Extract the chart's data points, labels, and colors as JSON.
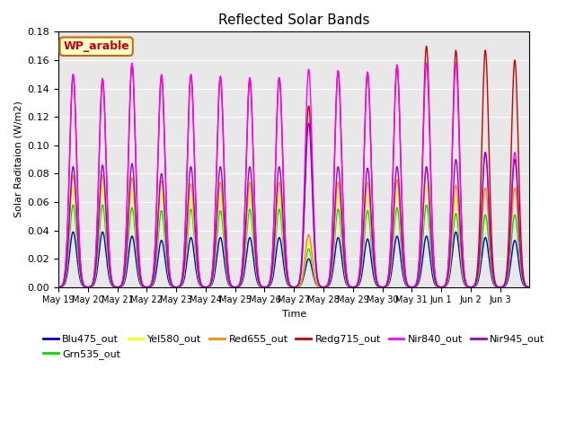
{
  "title": "Reflected Solar Bands",
  "xlabel": "Time",
  "ylabel": "Solar Raditaion (W/m2)",
  "annotation_text": "WP_arable",
  "annotation_bg": "#ffffcc",
  "annotation_border": "#cc6600",
  "annotation_text_color": "#cc0000",
  "ylim": [
    0,
    0.18
  ],
  "yticks": [
    0.0,
    0.02,
    0.04,
    0.06,
    0.08,
    0.1,
    0.12,
    0.14,
    0.16,
    0.18
  ],
  "fig_bg": "#ffffff",
  "axes_bg": "#e8e8e8",
  "series": {
    "Blu475_out": {
      "color": "#0000dd",
      "zorder": 3
    },
    "Grn535_out": {
      "color": "#00dd00",
      "zorder": 4
    },
    "Yel580_out": {
      "color": "#ffff00",
      "zorder": 5
    },
    "Red655_out": {
      "color": "#ff8800",
      "zorder": 6
    },
    "Redg715_out": {
      "color": "#cc0000",
      "zorder": 7
    },
    "Nir840_out": {
      "color": "#ff00ff",
      "zorder": 8
    },
    "Nir945_out": {
      "color": "#9900cc",
      "zorder": 9
    }
  },
  "peaks": {
    "Blu475_out": [
      0.039,
      0.039,
      0.036,
      0.033,
      0.035,
      0.035,
      0.035,
      0.035,
      0.02,
      0.035,
      0.034,
      0.036,
      0.036,
      0.039,
      0.035,
      0.033
    ],
    "Grn535_out": [
      0.058,
      0.058,
      0.056,
      0.054,
      0.055,
      0.054,
      0.055,
      0.055,
      0.027,
      0.055,
      0.054,
      0.056,
      0.058,
      0.052,
      0.051,
      0.051
    ],
    "Yel580_out": [
      0.07,
      0.07,
      0.068,
      0.066,
      0.063,
      0.065,
      0.065,
      0.065,
      0.032,
      0.065,
      0.065,
      0.067,
      0.072,
      0.063,
      0.07,
      0.07
    ],
    "Red655_out": [
      0.079,
      0.079,
      0.077,
      0.075,
      0.073,
      0.074,
      0.074,
      0.074,
      0.037,
      0.074,
      0.074,
      0.076,
      0.083,
      0.072,
      0.07,
      0.07
    ],
    "Redg715_out": [
      0.15,
      0.147,
      0.157,
      0.149,
      0.15,
      0.148,
      0.147,
      0.148,
      0.128,
      0.152,
      0.151,
      0.156,
      0.17,
      0.167,
      0.167,
      0.16
    ],
    "Nir840_out": [
      0.15,
      0.147,
      0.158,
      0.15,
      0.15,
      0.149,
      0.148,
      0.148,
      0.154,
      0.153,
      0.152,
      0.157,
      0.158,
      0.158,
      0.095,
      0.095
    ],
    "Nir945_out": [
      0.085,
      0.086,
      0.087,
      0.08,
      0.085,
      0.085,
      0.085,
      0.085,
      0.116,
      0.085,
      0.084,
      0.085,
      0.085,
      0.09,
      0.095,
      0.09
    ]
  },
  "xtick_labels": [
    "May 19",
    "May 20",
    "May 21",
    "May 22",
    "May 23",
    "May 24",
    "May 25",
    "May 26",
    "May 27",
    "May 28",
    "May 29",
    "May 30",
    "May 31",
    "Jun 1",
    "Jun 2",
    "Jun 3"
  ],
  "grid_color": "#ffffff",
  "linewidth": 1.0,
  "pts_per_day": 48,
  "sigma": 0.12
}
